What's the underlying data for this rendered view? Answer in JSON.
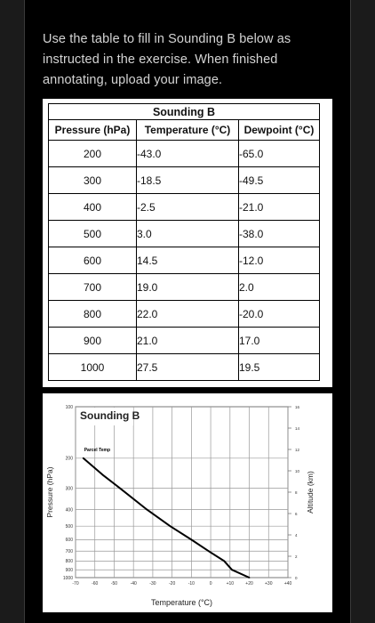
{
  "instructions": "Use the table to fill in Sounding B below as instructed in the exercise. When finished annotating, upload your image.",
  "table": {
    "title": "Sounding B",
    "headers": [
      "Pressure (hPa)",
      "Temperature (°C)",
      "Dewpoint (°C)"
    ],
    "rows": [
      {
        "pressure": "200",
        "temperature": "-43.0",
        "dewpoint": "-65.0"
      },
      {
        "pressure": "300",
        "temperature": "-18.5",
        "dewpoint": "-49.5"
      },
      {
        "pressure": "400",
        "temperature": "-2.5",
        "dewpoint": "-21.0"
      },
      {
        "pressure": "500",
        "temperature": "3.0",
        "dewpoint": "-38.0"
      },
      {
        "pressure": "600",
        "temperature": "14.5",
        "dewpoint": "-12.0"
      },
      {
        "pressure": "700",
        "temperature": "19.0",
        "dewpoint": "2.0"
      },
      {
        "pressure": "800",
        "temperature": "22.0",
        "dewpoint": "-20.0"
      },
      {
        "pressure": "900",
        "temperature": "21.0",
        "dewpoint": "17.0"
      },
      {
        "pressure": "1000",
        "temperature": "27.5",
        "dewpoint": "19.5"
      }
    ]
  },
  "chart_data": {
    "type": "line",
    "title": "Sounding B",
    "xlabel": "Temperature (°C)",
    "ylabel": "Pressure (hPa)",
    "y2label": "Altitude (km)",
    "xlim": [
      -70,
      40
    ],
    "x_ticks": [
      "-70",
      "-60",
      "-50",
      "-40",
      "-30",
      "-20",
      "-10",
      "0",
      "+10",
      "+20",
      "+30",
      "+40"
    ],
    "y_ticks": [
      "100",
      "200",
      "300",
      "400",
      "500",
      "600",
      "700",
      "800",
      "900",
      "1000"
    ],
    "y2_ticks": [
      "0",
      "2",
      "4",
      "6",
      "8",
      "10",
      "12",
      "14",
      "16"
    ],
    "ylim_altitude_km": [
      0,
      16
    ],
    "grid": true,
    "series": [
      {
        "name": "Parcel Temp",
        "points": [
          {
            "pressure": 200,
            "temperature": -66
          },
          {
            "pressure": 250,
            "temperature": -56
          },
          {
            "pressure": 300,
            "temperature": -47
          },
          {
            "pressure": 400,
            "temperature": -33
          },
          {
            "pressure": 500,
            "temperature": -21
          },
          {
            "pressure": 600,
            "temperature": -10
          },
          {
            "pressure": 700,
            "temperature": -1
          },
          {
            "pressure": 800,
            "temperature": 7
          },
          {
            "pressure": 900,
            "temperature": 11
          },
          {
            "pressure": 1000,
            "temperature": 20
          }
        ]
      }
    ]
  }
}
